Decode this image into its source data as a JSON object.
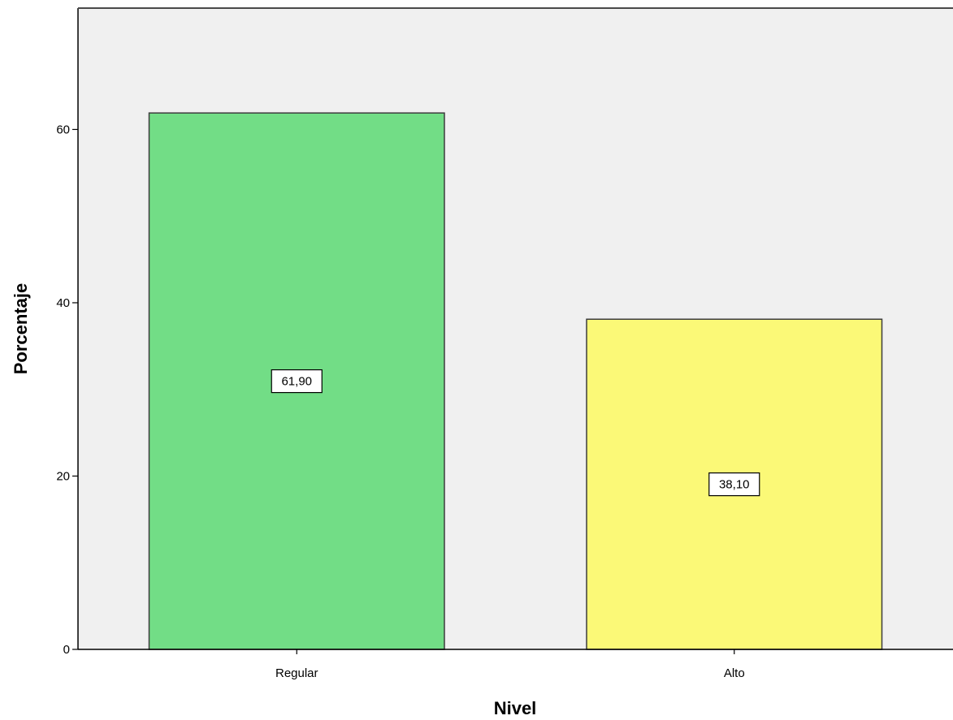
{
  "chart_data": {
    "type": "bar",
    "categories": [
      "Regular",
      "Alto"
    ],
    "values": [
      61.9,
      38.1
    ],
    "data_labels": [
      "61,90",
      "38,10"
    ],
    "colors": [
      "#72dd86",
      "#fbf977"
    ],
    "plot_background": "#f0f0f0",
    "xlabel": "Nivel",
    "ylabel": "Porcentaje",
    "ylim": [
      0,
      74
    ],
    "yticks": [
      0,
      20,
      40,
      60
    ],
    "ytick_labels": [
      "0",
      "20",
      "40",
      "60"
    ],
    "grid": false,
    "legend": "none"
  }
}
